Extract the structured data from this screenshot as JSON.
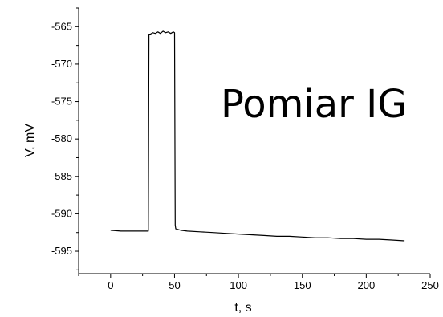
{
  "chart_data": {
    "type": "line",
    "xlabel": "t, s",
    "ylabel": "V, mV",
    "xlim": [
      -25,
      250
    ],
    "ylim": [
      -598,
      -562.5
    ],
    "xticks": [
      0,
      50,
      100,
      150,
      200,
      250
    ],
    "yticks": [
      -565,
      -570,
      -575,
      -580,
      -585,
      -590,
      -595
    ],
    "annotation": "Pomiar IG",
    "grid": false,
    "series": [
      {
        "x": [
          0,
          8,
          15,
          22,
          29.5,
          30,
          31,
          33,
          35,
          37,
          39,
          41,
          43,
          45,
          47,
          49,
          50,
          50.5,
          51,
          55,
          60,
          70,
          80,
          90,
          100,
          110,
          120,
          130,
          140,
          150,
          160,
          170,
          180,
          190,
          200,
          210,
          220,
          230
        ],
        "y": [
          -592.2,
          -592.3,
          -592.3,
          -592.3,
          -592.3,
          -566.0,
          -566.0,
          -565.8,
          -565.9,
          -565.7,
          -565.9,
          -565.6,
          -565.8,
          -565.7,
          -565.9,
          -565.7,
          -565.8,
          -591.5,
          -592.0,
          -592.2,
          -592.3,
          -592.4,
          -592.5,
          -592.6,
          -592.7,
          -592.8,
          -592.9,
          -593.0,
          -593.0,
          -593.1,
          -593.2,
          -593.2,
          -593.3,
          -593.3,
          -593.4,
          -593.4,
          -593.5,
          -593.6
        ]
      }
    ]
  }
}
